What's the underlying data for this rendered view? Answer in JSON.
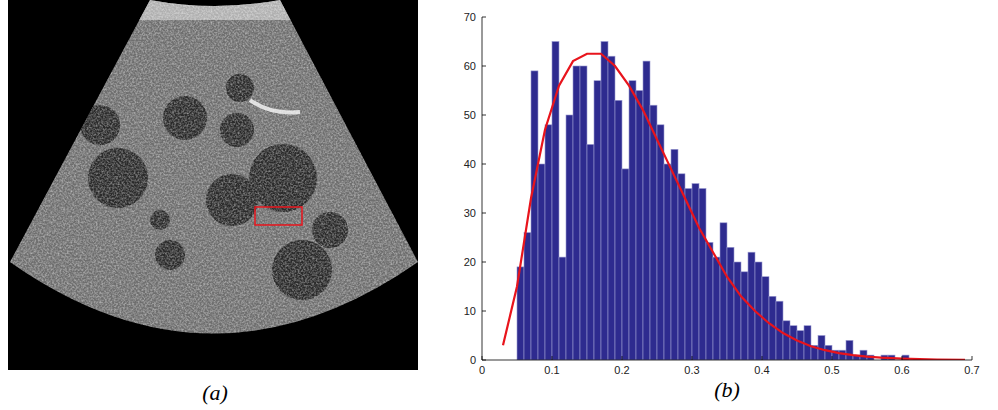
{
  "image": {
    "caption": "(a)"
  },
  "chart_data": {
    "type": "histogram",
    "caption": "(b)",
    "bins": [
      0.05,
      0.06,
      0.07,
      0.08,
      0.09,
      0.1,
      0.11,
      0.12,
      0.13,
      0.14,
      0.15,
      0.16,
      0.17,
      0.18,
      0.19,
      0.2,
      0.21,
      0.22,
      0.23,
      0.24,
      0.25,
      0.26,
      0.27,
      0.28,
      0.29,
      0.3,
      0.31,
      0.32,
      0.33,
      0.34,
      0.35,
      0.36,
      0.37,
      0.38,
      0.39,
      0.4,
      0.41,
      0.42,
      0.43,
      0.44,
      0.45,
      0.46,
      0.47,
      0.48,
      0.49,
      0.5,
      0.51,
      0.52,
      0.53,
      0.54,
      0.55,
      0.56,
      0.57,
      0.58,
      0.59,
      0.6,
      0.61
    ],
    "values": [
      19,
      26,
      59,
      40,
      48,
      65,
      21,
      50,
      60,
      60,
      44,
      57,
      65,
      62,
      53,
      39,
      57,
      55,
      61,
      52,
      48,
      40,
      43,
      38,
      35,
      36,
      35,
      24,
      21,
      28,
      23,
      20,
      18,
      22,
      20,
      17,
      13,
      12,
      8,
      7,
      6,
      7,
      3,
      5,
      3,
      2,
      2,
      4,
      1,
      2,
      1,
      0,
      1,
      1,
      0,
      1
    ],
    "color": "#2e2b8f",
    "series": [
      {
        "type": "line",
        "color": "#e8141c",
        "x": [
          0.03,
          0.05,
          0.07,
          0.09,
          0.11,
          0.13,
          0.15,
          0.17,
          0.19,
          0.21,
          0.23,
          0.25,
          0.27,
          0.29,
          0.31,
          0.33,
          0.35,
          0.37,
          0.39,
          0.41,
          0.43,
          0.45,
          0.47,
          0.49,
          0.51,
          0.53,
          0.55,
          0.57,
          0.6,
          0.65,
          0.69
        ],
        "values": [
          3,
          15,
          33,
          47,
          56,
          61,
          62.5,
          62.5,
          60,
          56,
          51,
          45,
          39,
          33,
          27,
          22,
          17,
          13,
          10,
          7.5,
          5.5,
          4,
          2.8,
          2,
          1.4,
          1,
          0.7,
          0.5,
          0.3,
          0.1,
          0.05
        ]
      }
    ],
    "xlim": [
      0,
      0.7
    ],
    "xticks": [
      0,
      0.1,
      0.2,
      0.3,
      0.4,
      0.5,
      0.6,
      0.7
    ],
    "ylim": [
      0,
      70
    ],
    "yticks": [
      0,
      10,
      20,
      30,
      40,
      50,
      60,
      70
    ]
  }
}
